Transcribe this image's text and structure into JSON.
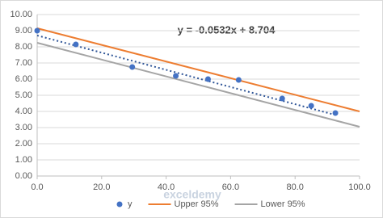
{
  "chart_data": {
    "type": "scatter",
    "annotation": "y = -0.0532x + 8.704",
    "watermark": "exceldemy",
    "xlim": [
      0,
      100
    ],
    "xticks": [
      {
        "value": 0,
        "label": "0.0"
      },
      {
        "value": 20,
        "label": "20.0"
      },
      {
        "value": 40,
        "label": "40.0"
      },
      {
        "value": 60,
        "label": "60.0"
      },
      {
        "value": 80,
        "label": "80.0"
      },
      {
        "value": 100,
        "label": "100.0"
      }
    ],
    "ylim": [
      0,
      10
    ],
    "yticks": [
      {
        "value": 0,
        "label": "0.00"
      },
      {
        "value": 1,
        "label": "1.00"
      },
      {
        "value": 2,
        "label": "2.00"
      },
      {
        "value": 3,
        "label": "3.00"
      },
      {
        "value": 4,
        "label": "4.00"
      },
      {
        "value": 5,
        "label": "5.00"
      },
      {
        "value": 6,
        "label": "6.00"
      },
      {
        "value": 7,
        "label": "7.00"
      },
      {
        "value": 8,
        "label": "8.00"
      },
      {
        "value": 9,
        "label": "9.00"
      },
      {
        "value": 10,
        "label": "10.00"
      }
    ],
    "grid": true,
    "series": [
      {
        "name": "y",
        "kind": "points",
        "color": "#4472c4",
        "x": [
          0,
          12,
          29.5,
          43,
          53,
          62.5,
          76,
          85,
          92.5
        ],
        "values": [
          9.0,
          8.15,
          6.75,
          6.2,
          6.0,
          5.95,
          4.8,
          4.35,
          3.9
        ]
      },
      {
        "name": "Upper 95%",
        "kind": "line",
        "color": "#ed7d31",
        "x": [
          0,
          100
        ],
        "values": [
          9.15,
          4.0
        ]
      },
      {
        "name": "Lower 95%",
        "kind": "line",
        "color": "#a5a5a5",
        "x": [
          0,
          100
        ],
        "values": [
          8.25,
          3.05
        ]
      }
    ],
    "trendline": {
      "color": "#2f5597",
      "x": [
        0,
        92.5
      ],
      "values": [
        8.704,
        3.783
      ]
    },
    "legend": "bottom"
  }
}
